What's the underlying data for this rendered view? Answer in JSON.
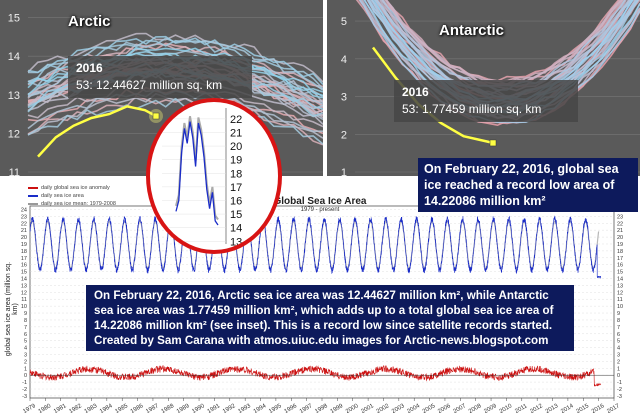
{
  "arctic": {
    "title": "Arctic",
    "tooltip_year": "2016",
    "tooltip_value": "53: 12.44627 million sq. km",
    "colors": {
      "background": "#5a5a5a",
      "highlight": "#ffff44",
      "grid": "#777777"
    }
  },
  "antarctic": {
    "title": "Antarctic",
    "tooltip_year": "2016",
    "tooltip_value": "53: 1.77459 million sq. km"
  },
  "callouts": {
    "record": "On February 22, 2016, global sea ice reached a record low area of 14.22086 million km²",
    "main": "On February 22, 2016, Arctic sea ice area was 12.44627 million km², while Antarctic sea ice area was 1.77459 million km², which adds up to a total global sea ice area of 14.22086 million km² (see inset). This is a record low since satellite records started. Created by Sam Carana with atmos.uiuc.edu images for Arctic-news.blogspot.com"
  },
  "global": {
    "title": "Global Sea Ice Area",
    "subtitle": "1979 - present",
    "ylabel": "global sea ice area (million sq. km)",
    "legend": [
      "daily global sea ice anomaly",
      "daily sea ice area",
      "daily sea ice mean: 1979-2008"
    ],
    "colors": {
      "area": "#1a2cc8",
      "anomaly": "#cc1111",
      "mean": "#999999",
      "callout": "#0d1a5c",
      "inset_ring": "#d81414"
    }
  },
  "chart_data": [
    {
      "type": "line",
      "title": "Arctic",
      "yticks": [
        11,
        12,
        13,
        14,
        15
      ],
      "ylim": [
        11,
        15.3
      ],
      "highlight_series": {
        "name": "2016",
        "x": [
          0,
          8,
          16,
          24,
          32,
          40,
          48,
          53
        ],
        "y": [
          11.4,
          11.9,
          12.2,
          12.4,
          12.5,
          12.7,
          12.6,
          12.45
        ]
      }
    },
    {
      "type": "line",
      "title": "Antarctic",
      "yticks": [
        1,
        2,
        3,
        4,
        5
      ],
      "ylim": [
        1,
        5.4
      ],
      "highlight_series": {
        "name": "2016",
        "x": [
          0,
          10,
          20,
          30,
          40,
          53
        ],
        "y": [
          4.3,
          3.5,
          2.8,
          2.3,
          1.95,
          1.77
        ]
      }
    },
    {
      "type": "line",
      "title": "inset",
      "yticks": [
        13,
        14,
        15,
        16,
        17,
        18,
        19,
        20,
        21,
        22
      ],
      "ylim": [
        12.8,
        22.8
      ],
      "series": [
        {
          "name": "",
          "values": [
            15.2,
            16.0,
            19.5,
            21.3,
            20.2,
            21.8,
            20.6,
            18.5,
            21.7,
            20.8,
            19.2,
            16.8,
            15.4,
            16.6,
            14.5,
            14.2
          ]
        }
      ]
    },
    {
      "type": "line",
      "title": "Global Sea Ice Area",
      "subtitle": "1979 - present",
      "ylabel": "global sea ice area (million sq. km)",
      "xticks": [
        1979,
        1980,
        1981,
        1982,
        1983,
        1984,
        1985,
        1986,
        1987,
        1988,
        1989,
        1990,
        1991,
        1992,
        1993,
        1994,
        1995,
        1996,
        1997,
        1998,
        1999,
        2000,
        2001,
        2002,
        2003,
        2004,
        2005,
        2006,
        2007,
        2008,
        2009,
        2010,
        2011,
        2012,
        2013,
        2014,
        2015,
        2016,
        2017
      ],
      "yticks": [
        -3,
        -2,
        -1,
        0,
        1,
        2,
        3,
        4,
        5,
        6,
        7,
        8,
        9,
        10,
        11,
        12,
        13,
        14,
        15,
        16,
        17,
        18,
        19,
        20,
        21,
        22,
        23,
        24
      ],
      "ylim": [
        -3.3,
        24.5
      ],
      "xlim": [
        1979,
        2017
      ],
      "series": [
        {
          "name": "daily sea ice area",
          "seasonal_min": 15.2,
          "seasonal_max": 22.6,
          "final_value": 14.22086
        },
        {
          "name": "daily global sea ice anomaly",
          "level": 0.3,
          "final_value": -1.4
        },
        {
          "name": "daily sea ice mean: 1979-2008",
          "seasonal_min": 15.5,
          "seasonal_max": 22.3
        }
      ]
    }
  ]
}
